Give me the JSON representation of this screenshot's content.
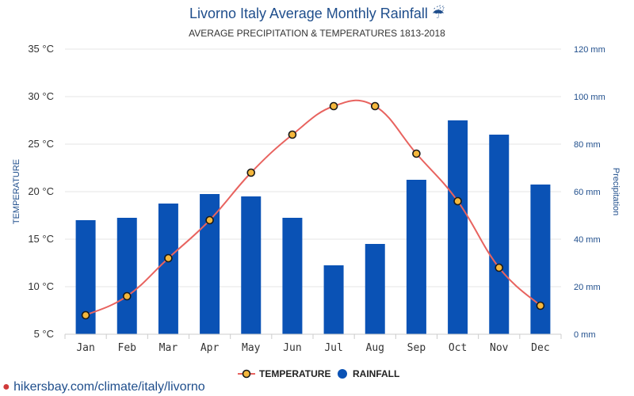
{
  "page": {
    "title": "Livorno Italy Average Monthly Rainfall ☔",
    "subtitle": "AVERAGE PRECIPITATION & TEMPERATURES 1813-2018",
    "footer_url": "hikersbay.com/climate/italy/livorno"
  },
  "colors": {
    "bar": "#0a52b5",
    "line": "#e8635f",
    "marker_fill": "#f5b83d",
    "marker_stroke": "#1a1a1a",
    "grid": "#e6e6e6",
    "title": "#1f4e8c"
  },
  "chart_data": {
    "type": "bar",
    "categories": [
      "Jan",
      "Feb",
      "Mar",
      "Apr",
      "May",
      "Jun",
      "Jul",
      "Aug",
      "Sep",
      "Oct",
      "Nov",
      "Dec"
    ],
    "series": [
      {
        "name": "RAINFALL",
        "kind": "bar",
        "axis": "right",
        "values": [
          48,
          49,
          55,
          59,
          58,
          49,
          29,
          38,
          65,
          90,
          84,
          63
        ]
      },
      {
        "name": "TEMPERATURE",
        "kind": "line",
        "axis": "left",
        "values": [
          7,
          9,
          13,
          17,
          22,
          26,
          29,
          29,
          24,
          19,
          12,
          8
        ]
      }
    ],
    "y_left": {
      "label": "TEMPERATURE",
      "range": [
        5,
        35
      ],
      "ticks": [
        "5 °C",
        "10 °C",
        "15 °C",
        "20 °C",
        "25 °C",
        "30 °C",
        "35 °C"
      ]
    },
    "y_right": {
      "label": "Precipitation",
      "range": [
        0,
        120
      ],
      "ticks": [
        "0 mm",
        "20 mm",
        "40 mm",
        "60 mm",
        "80 mm",
        "100 mm",
        "120 mm"
      ]
    },
    "legend": {
      "position": "bottom",
      "items": [
        "TEMPERATURE",
        "RAINFALL"
      ]
    },
    "grid": true
  }
}
